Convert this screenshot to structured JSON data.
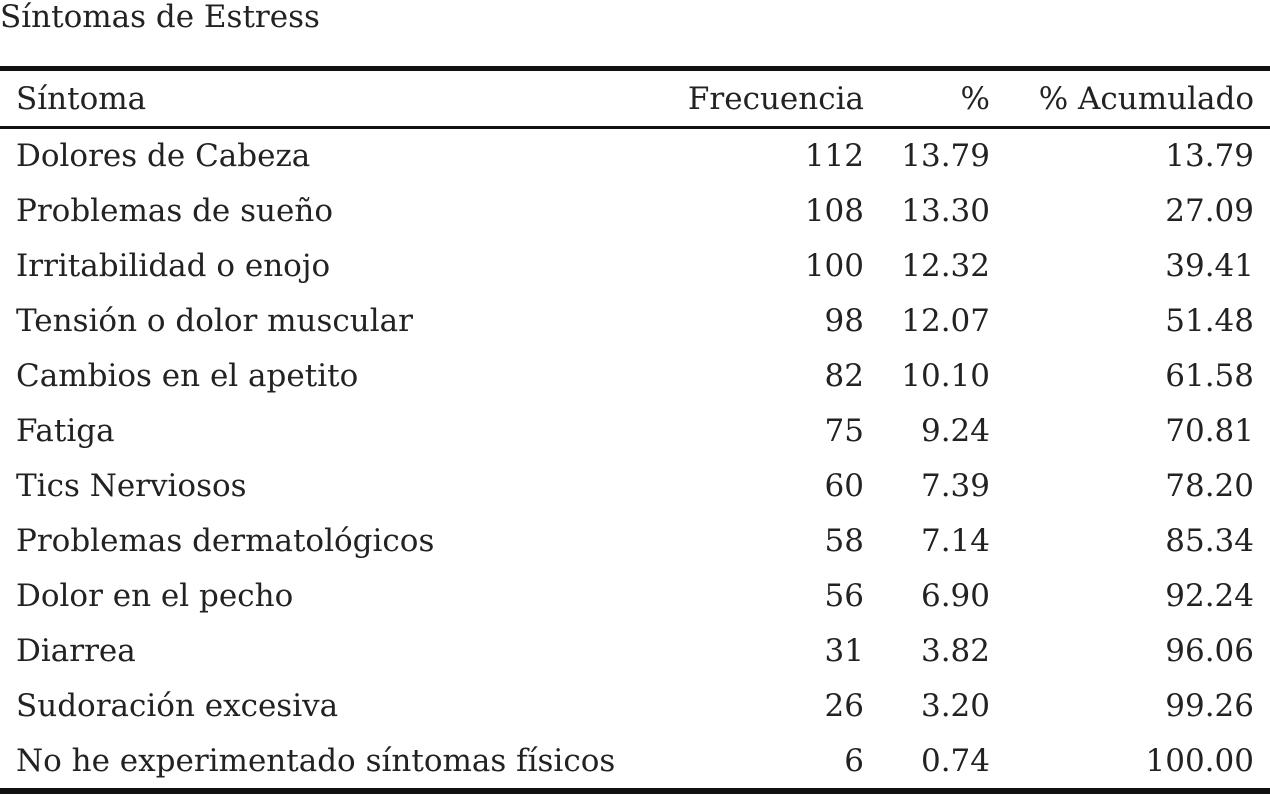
{
  "caption": "Síntomas de Estress",
  "table": {
    "headers": {
      "symptom": "Síntoma",
      "frequency": "Frecuencia",
      "percent": "%",
      "cumulative": "% Acumulado"
    },
    "rows": [
      {
        "symptom": "Dolores de Cabeza",
        "frequency": "112",
        "percent": "13.79",
        "cumulative": "13.79"
      },
      {
        "symptom": "Problemas de sueño",
        "frequency": "108",
        "percent": "13.30",
        "cumulative": "27.09"
      },
      {
        "symptom": "Irritabilidad o enojo",
        "frequency": "100",
        "percent": "12.32",
        "cumulative": "39.41"
      },
      {
        "symptom": "Tensión o dolor muscular",
        "frequency": "98",
        "percent": "12.07",
        "cumulative": "51.48"
      },
      {
        "symptom": "Cambios en el apetito",
        "frequency": "82",
        "percent": "10.10",
        "cumulative": "61.58"
      },
      {
        "symptom": "Fatiga",
        "frequency": "75",
        "percent": "9.24",
        "cumulative": "70.81"
      },
      {
        "symptom": "Tics Nerviosos",
        "frequency": "60",
        "percent": "7.39",
        "cumulative": "78.20"
      },
      {
        "symptom": "Problemas dermatológicos",
        "frequency": "58",
        "percent": "7.14",
        "cumulative": "85.34"
      },
      {
        "symptom": "Dolor en el pecho",
        "frequency": "56",
        "percent": "6.90",
        "cumulative": "92.24"
      },
      {
        "symptom": "Diarrea",
        "frequency": "31",
        "percent": "3.82",
        "cumulative": "96.06"
      },
      {
        "symptom": "Sudoración excesiva",
        "frequency": "26",
        "percent": "3.20",
        "cumulative": "99.26"
      },
      {
        "symptom": "No he experimentado síntomas físicos",
        "frequency": "6",
        "percent": "0.74",
        "cumulative": "100.00"
      }
    ]
  }
}
